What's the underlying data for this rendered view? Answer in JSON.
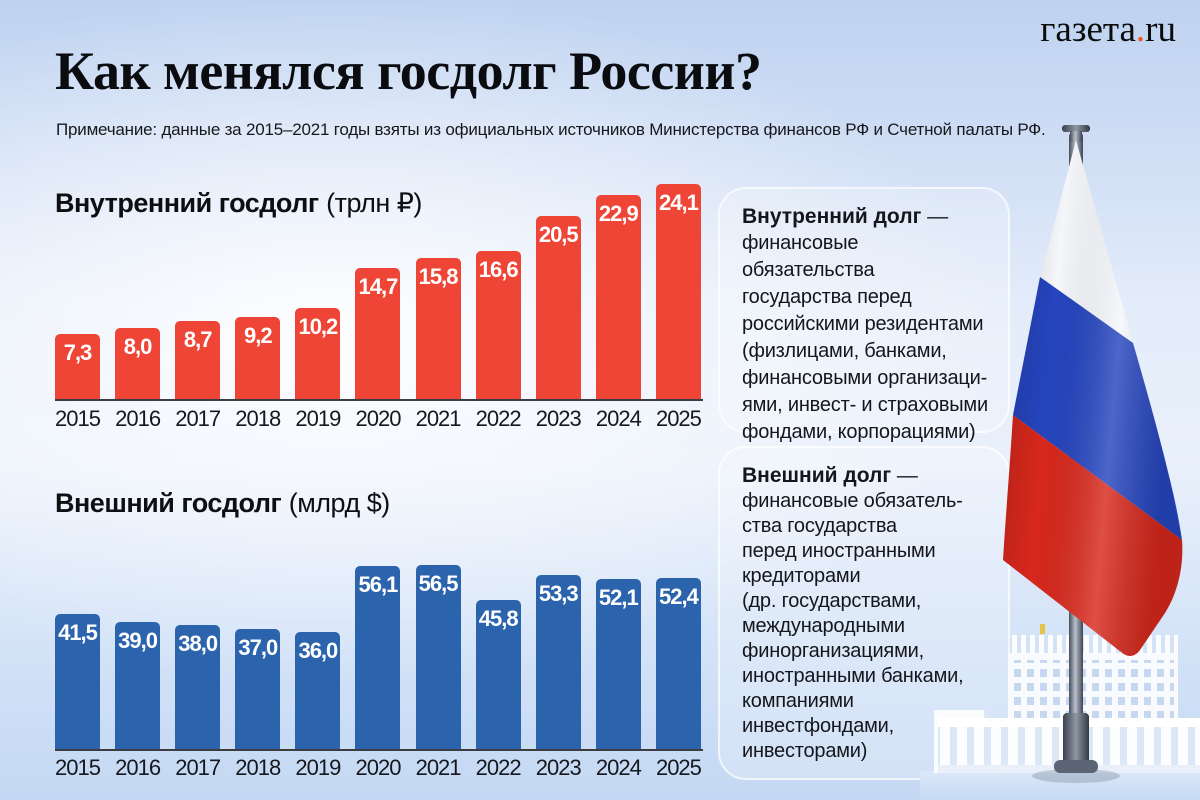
{
  "page": {
    "title": "Как менялся госдолг России?",
    "note": "Примечание: данные за 2015–2021 годы взяты из официальных источников Министерства финансов РФ и Счетной палаты РФ."
  },
  "logo": {
    "name": "газета",
    "dot": ".",
    "tld": "ru"
  },
  "colors": {
    "bar_red": "#EE4536",
    "bar_blue": "#2C63AD",
    "flag_white": "#F4F6FA",
    "flag_blue": "#2545BE",
    "flag_red": "#D7281C",
    "logo_dot": "#F4511E",
    "axis": "#3B3D42"
  },
  "chart_data": [
    {
      "type": "bar",
      "title": "Внутренний госдолг",
      "unit": "(трлн ₽)",
      "categories": [
        "2015",
        "2016",
        "2017",
        "2018",
        "2019",
        "2020",
        "2021",
        "2022",
        "2023",
        "2024",
        "2025"
      ],
      "values": [
        7.3,
        8.0,
        8.7,
        9.2,
        10.2,
        14.7,
        15.8,
        16.6,
        20.5,
        22.9,
        24.1
      ],
      "value_labels": [
        "7,3",
        "8,0",
        "8,7",
        "9,2",
        "10,2",
        "14,7",
        "15,8",
        "16,6",
        "20,5",
        "22,9",
        "24,1"
      ],
      "ylim": [
        0,
        24.1
      ],
      "grid": false,
      "legend": "none",
      "color": "#EE4536",
      "label_color": "#FFFFFF"
    },
    {
      "type": "bar",
      "title": "Внешний госдолг",
      "unit": "(млрд $)",
      "categories": [
        "2015",
        "2016",
        "2017",
        "2018",
        "2019",
        "2020",
        "2021",
        "2022",
        "2023",
        "2024",
        "2025"
      ],
      "values": [
        41.5,
        39.0,
        38.0,
        37.0,
        36.0,
        56.1,
        56.5,
        45.8,
        53.3,
        52.1,
        52.4
      ],
      "value_labels": [
        "41,5",
        "39,0",
        "38,0",
        "37,0",
        "36,0",
        "56,1",
        "56,5",
        "45,8",
        "53,3",
        "52,1",
        "52,4"
      ],
      "ylim": [
        0,
        56.5
      ],
      "grid": false,
      "legend": "none",
      "color": "#2C63AD",
      "label_color": "#FFFFFF"
    }
  ],
  "cards": [
    {
      "heading": "Внутренний долг",
      "dash": " —",
      "body": "финансовые обязательства\nгосударства перед\nроссийскими резидентами\n(физлицами, банками,\nфинансовыми организаци-\nями, инвест- и страховыми\nфондами, корпорациями)"
    },
    {
      "heading": "Внешний долг",
      "dash": " —",
      "body": "финансовые обязатель-\nства государства\nперед иностранными\nкредиторами\n(др. государствами,\nмеждународными\nфинорганизациями,\nиностранными банками,\nкомпаниями\nинвестфондами,\nинвесторами)"
    }
  ],
  "illustrations": {
    "flag": "russia-flag",
    "building": "russia-government-building"
  }
}
